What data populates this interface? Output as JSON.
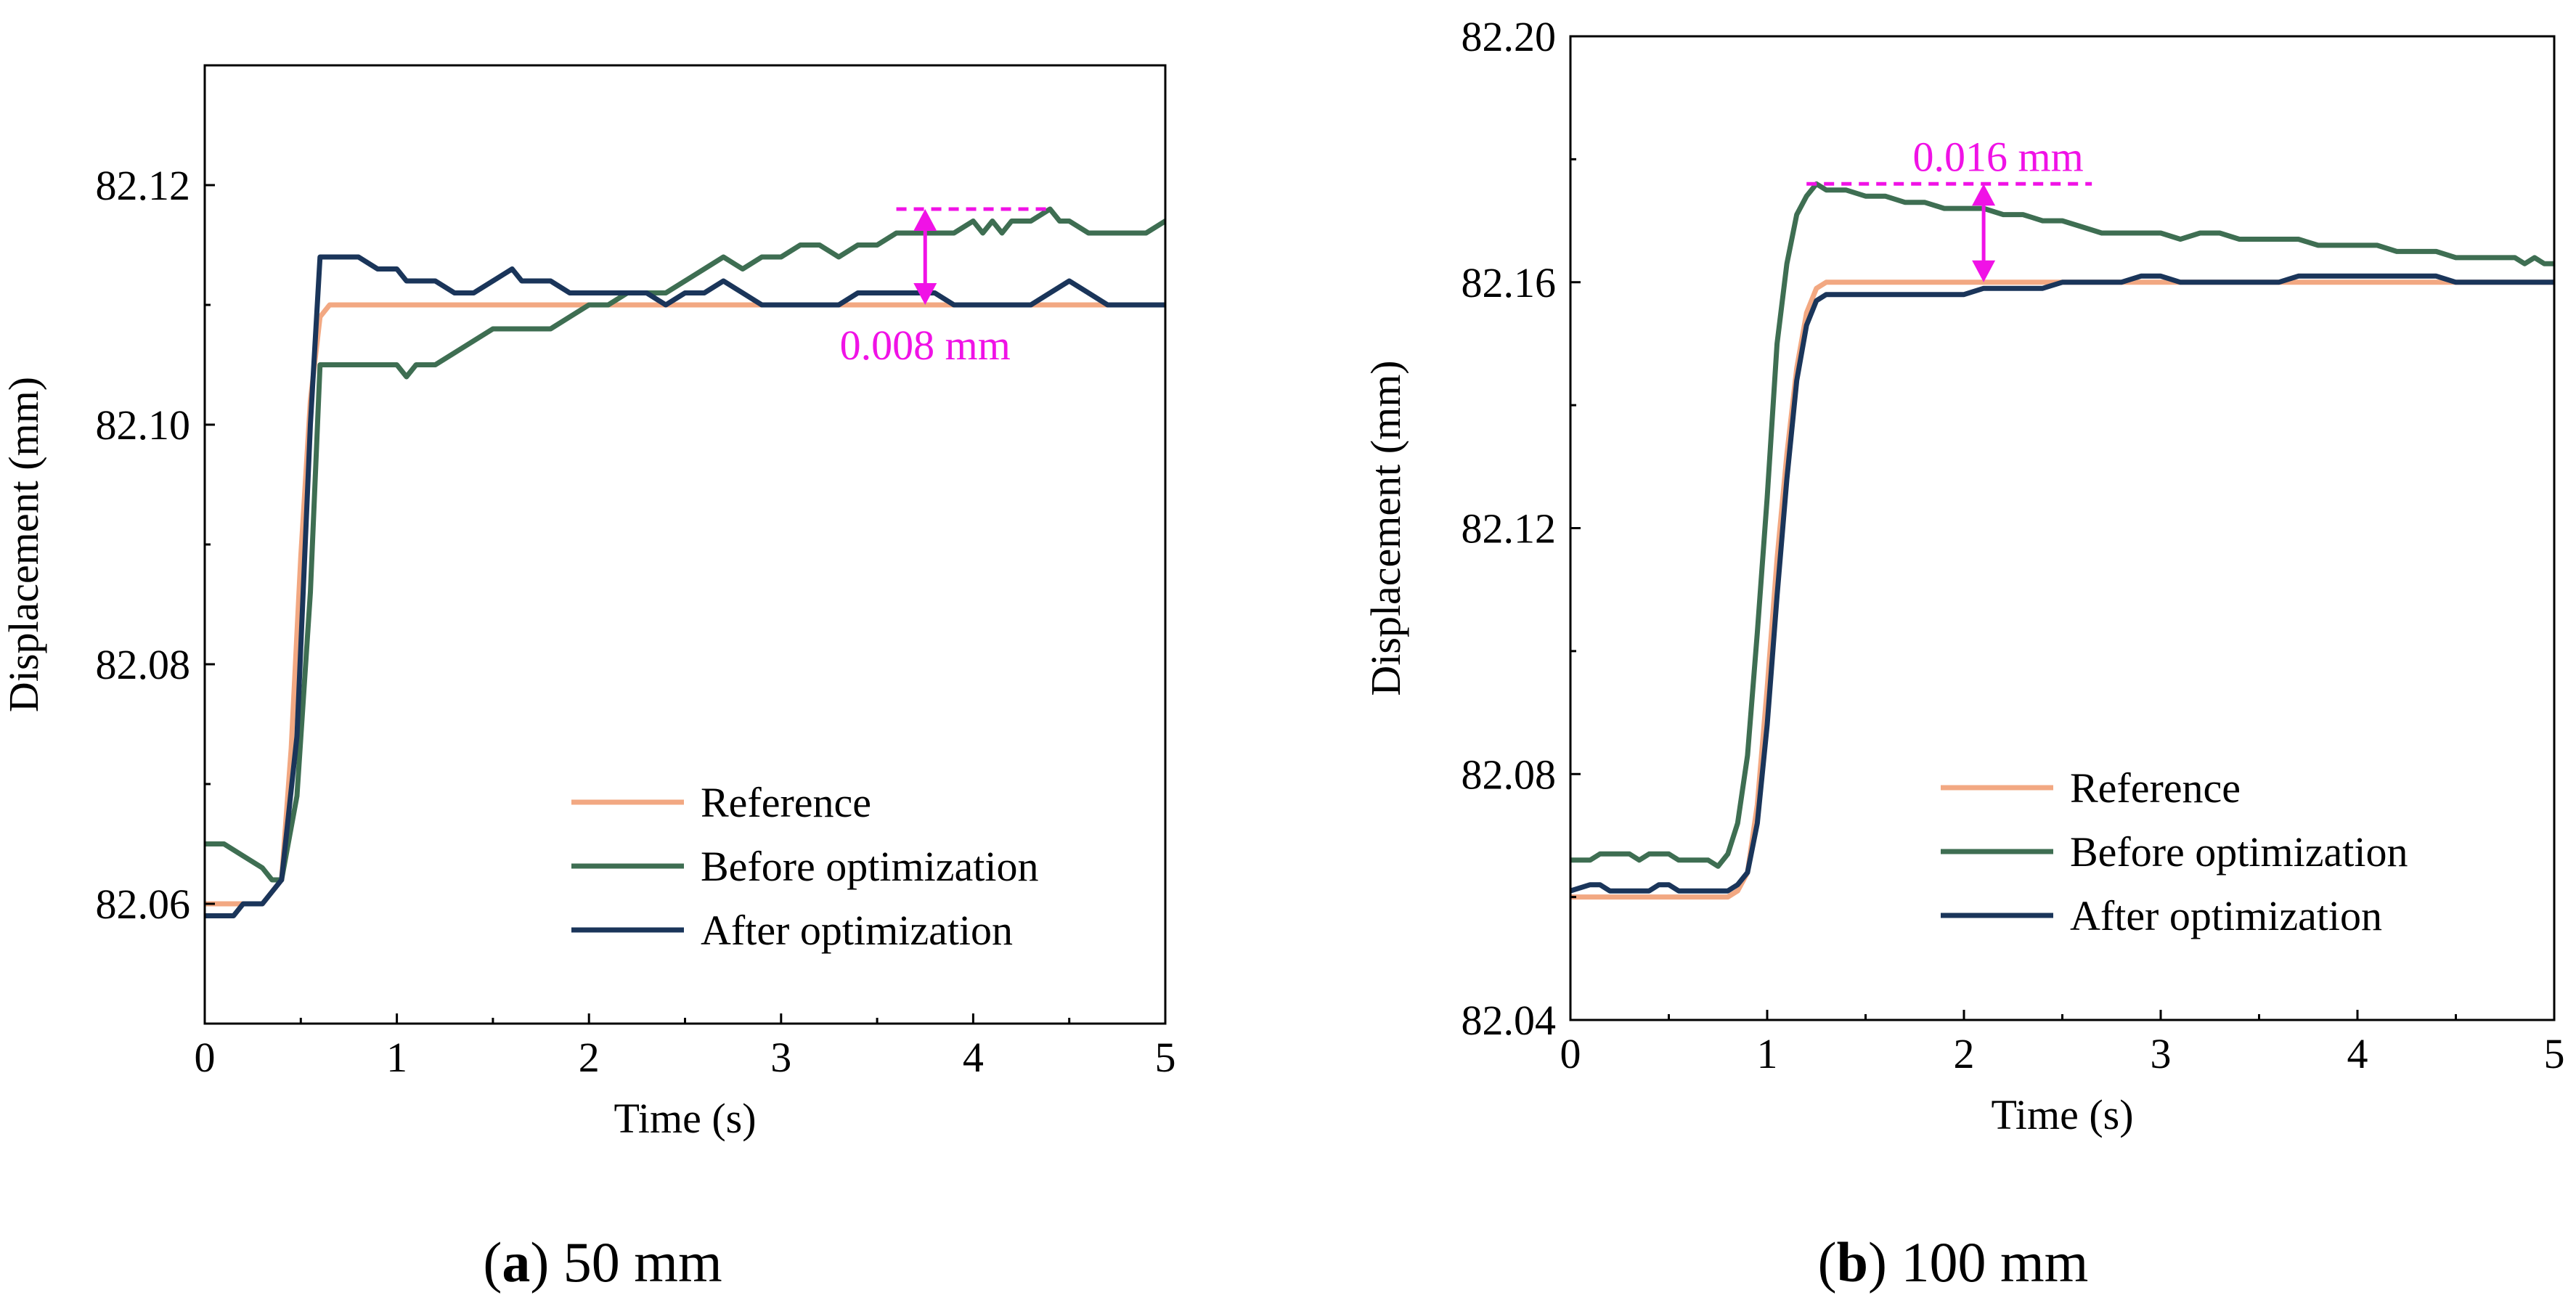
{
  "colors": {
    "reference": "#F2A882",
    "before": "#3E6E52",
    "after": "#1A355A",
    "annotation": "#F012E6",
    "axis": "#000000"
  },
  "chart_data": [
    {
      "type": "line",
      "panel": "a",
      "caption_letter": "a",
      "caption_text": " 50 mm",
      "xlabel": "Time (s)",
      "ylabel": "Displacement (mm)",
      "xlim": [
        0,
        5
      ],
      "ylim": [
        82.05,
        82.13
      ],
      "xticks": [
        0,
        1,
        2,
        3,
        4,
        5
      ],
      "xtick_labels": [
        "0",
        "1",
        "2",
        "3",
        "4",
        "5"
      ],
      "yticks": [
        82.06,
        82.08,
        82.1,
        82.12
      ],
      "ytick_labels": [
        "82.06",
        "82.08",
        "82.10",
        "82.12"
      ],
      "legend_position": "bottom-right",
      "series": [
        {
          "name": "Reference",
          "key": "reference",
          "x": [
            0,
            0.3,
            0.35,
            0.4,
            0.45,
            0.5,
            0.55,
            0.6,
            0.65,
            0.7,
            5
          ],
          "y": [
            82.06,
            82.06,
            82.061,
            82.062,
            82.073,
            82.089,
            82.102,
            82.109,
            82.11,
            82.11,
            82.11
          ]
        },
        {
          "name": "Before optimization",
          "key": "before",
          "x": [
            0,
            0.1,
            0.2,
            0.3,
            0.35,
            0.4,
            0.48,
            0.55,
            0.6,
            0.65,
            0.7,
            0.8,
            0.9,
            1.0,
            1.05,
            1.1,
            1.2,
            1.3,
            1.4,
            1.5,
            1.6,
            1.7,
            1.8,
            1.9,
            2.0,
            2.1,
            2.2,
            2.3,
            2.4,
            2.5,
            2.6,
            2.7,
            2.8,
            2.9,
            3.0,
            3.1,
            3.2,
            3.3,
            3.4,
            3.5,
            3.6,
            3.7,
            3.8,
            3.9,
            4.0,
            4.05,
            4.1,
            4.15,
            4.2,
            4.3,
            4.4,
            4.45,
            4.5,
            4.6,
            4.7,
            4.8,
            4.9,
            5.0
          ],
          "y": [
            82.065,
            82.065,
            82.064,
            82.063,
            82.062,
            82.062,
            82.069,
            82.086,
            82.105,
            82.105,
            82.105,
            82.105,
            82.105,
            82.105,
            82.104,
            82.105,
            82.105,
            82.106,
            82.107,
            82.108,
            82.108,
            82.108,
            82.108,
            82.109,
            82.11,
            82.11,
            82.111,
            82.111,
            82.111,
            82.112,
            82.113,
            82.114,
            82.113,
            82.114,
            82.114,
            82.115,
            82.115,
            82.114,
            82.115,
            82.115,
            82.116,
            82.116,
            82.116,
            82.116,
            82.117,
            82.116,
            82.117,
            82.116,
            82.117,
            82.117,
            82.118,
            82.117,
            82.117,
            82.116,
            82.116,
            82.116,
            82.116,
            82.117
          ]
        },
        {
          "name": "After optimization",
          "key": "after",
          "x": [
            0,
            0.15,
            0.2,
            0.3,
            0.35,
            0.4,
            0.48,
            0.55,
            0.6,
            0.65,
            0.8,
            0.9,
            1.0,
            1.05,
            1.1,
            1.2,
            1.3,
            1.4,
            1.5,
            1.6,
            1.65,
            1.7,
            1.8,
            1.9,
            2.0,
            2.1,
            2.2,
            2.3,
            2.4,
            2.5,
            2.6,
            2.7,
            2.8,
            2.9,
            3.0,
            3.1,
            3.2,
            3.3,
            3.4,
            3.5,
            3.6,
            3.7,
            3.8,
            3.9,
            4.0,
            4.1,
            4.2,
            4.3,
            4.4,
            4.5,
            4.6,
            4.7,
            4.8,
            4.9,
            5.0
          ],
          "y": [
            82.059,
            82.059,
            82.06,
            82.06,
            82.061,
            82.062,
            82.074,
            82.1,
            82.114,
            82.114,
            82.114,
            82.113,
            82.113,
            82.112,
            82.112,
            82.112,
            82.111,
            82.111,
            82.112,
            82.113,
            82.112,
            82.112,
            82.112,
            82.111,
            82.111,
            82.111,
            82.111,
            82.111,
            82.11,
            82.111,
            82.111,
            82.112,
            82.111,
            82.11,
            82.11,
            82.11,
            82.11,
            82.11,
            82.111,
            82.111,
            82.111,
            82.111,
            82.111,
            82.11,
            82.11,
            82.11,
            82.11,
            82.11,
            82.111,
            82.112,
            82.111,
            82.11,
            82.11,
            82.11,
            82.11
          ]
        }
      ],
      "annotation": {
        "label": "0.008 mm",
        "x": 3.75,
        "y_top": 82.118,
        "y_bottom": 82.11,
        "dash_x": [
          3.6,
          4.4
        ]
      }
    },
    {
      "type": "line",
      "panel": "b",
      "caption_letter": "b",
      "caption_text": " 100 mm",
      "xlabel": "Time (s)",
      "ylabel": "Displacement (mm)",
      "xlim": [
        0,
        5
      ],
      "ylim": [
        82.04,
        82.2
      ],
      "xticks": [
        0,
        1,
        2,
        3,
        4,
        5
      ],
      "xtick_labels": [
        "0",
        "1",
        "2",
        "3",
        "4",
        "5"
      ],
      "yticks": [
        82.04,
        82.08,
        82.12,
        82.16,
        82.2
      ],
      "ytick_labels": [
        "82.04",
        "82.08",
        "82.12",
        "82.16",
        "82.20"
      ],
      "legend_position": "bottom-right",
      "series": [
        {
          "name": "Reference",
          "key": "reference",
          "x": [
            0,
            0.8,
            0.85,
            0.9,
            0.95,
            1.0,
            1.05,
            1.1,
            1.15,
            1.2,
            1.25,
            1.3,
            5
          ],
          "y": [
            82.06,
            82.06,
            82.061,
            82.064,
            82.075,
            82.094,
            82.115,
            82.132,
            82.146,
            82.155,
            82.159,
            82.16,
            82.16
          ]
        },
        {
          "name": "Before optimization",
          "key": "before",
          "x": [
            0,
            0.1,
            0.15,
            0.2,
            0.3,
            0.35,
            0.4,
            0.5,
            0.55,
            0.6,
            0.7,
            0.75,
            0.8,
            0.85,
            0.9,
            0.95,
            1.0,
            1.05,
            1.1,
            1.15,
            1.2,
            1.25,
            1.3,
            1.4,
            1.5,
            1.6,
            1.7,
            1.8,
            1.9,
            2.0,
            2.1,
            2.2,
            2.3,
            2.4,
            2.5,
            2.6,
            2.7,
            2.8,
            2.9,
            3.0,
            3.1,
            3.2,
            3.3,
            3.4,
            3.5,
            3.6,
            3.7,
            3.8,
            3.9,
            4.0,
            4.1,
            4.2,
            4.3,
            4.4,
            4.5,
            4.6,
            4.7,
            4.8,
            4.85,
            4.9,
            4.95,
            5.0
          ],
          "y": [
            82.066,
            82.066,
            82.067,
            82.067,
            82.067,
            82.066,
            82.067,
            82.067,
            82.066,
            82.066,
            82.066,
            82.065,
            82.067,
            82.072,
            82.083,
            82.103,
            82.125,
            82.15,
            82.163,
            82.171,
            82.174,
            82.176,
            82.175,
            82.175,
            82.174,
            82.174,
            82.173,
            82.173,
            82.172,
            82.172,
            82.172,
            82.171,
            82.171,
            82.17,
            82.17,
            82.169,
            82.168,
            82.168,
            82.168,
            82.168,
            82.167,
            82.168,
            82.168,
            82.167,
            82.167,
            82.167,
            82.167,
            82.166,
            82.166,
            82.166,
            82.166,
            82.165,
            82.165,
            82.165,
            82.164,
            82.164,
            82.164,
            82.164,
            82.163,
            82.164,
            82.163,
            82.163
          ]
        },
        {
          "name": "After optimization",
          "key": "after",
          "x": [
            0,
            0.1,
            0.15,
            0.2,
            0.3,
            0.4,
            0.45,
            0.5,
            0.55,
            0.6,
            0.7,
            0.8,
            0.85,
            0.9,
            0.95,
            1.0,
            1.05,
            1.1,
            1.15,
            1.2,
            1.25,
            1.3,
            1.4,
            1.5,
            1.6,
            1.7,
            1.8,
            1.9,
            2.0,
            2.1,
            2.2,
            2.3,
            2.4,
            2.5,
            2.6,
            2.7,
            2.8,
            2.9,
            3.0,
            3.1,
            3.2,
            3.3,
            3.4,
            3.5,
            3.6,
            3.7,
            3.8,
            3.9,
            4.0,
            4.1,
            4.2,
            4.3,
            4.4,
            4.5,
            4.6,
            4.7,
            4.8,
            4.9,
            5.0
          ],
          "y": [
            82.061,
            82.062,
            82.062,
            82.061,
            82.061,
            82.061,
            82.062,
            82.062,
            82.061,
            82.061,
            82.061,
            82.061,
            82.062,
            82.064,
            82.072,
            82.088,
            82.109,
            82.128,
            82.144,
            82.153,
            82.157,
            82.158,
            82.158,
            82.158,
            82.158,
            82.158,
            82.158,
            82.158,
            82.158,
            82.159,
            82.159,
            82.159,
            82.159,
            82.16,
            82.16,
            82.16,
            82.16,
            82.161,
            82.161,
            82.16,
            82.16,
            82.16,
            82.16,
            82.16,
            82.16,
            82.161,
            82.161,
            82.161,
            82.161,
            82.161,
            82.161,
            82.161,
            82.161,
            82.16,
            82.16,
            82.16,
            82.16,
            82.16,
            82.16
          ]
        }
      ],
      "annotation": {
        "label": "0.016 mm",
        "x": 2.1,
        "y_top": 82.176,
        "y_bottom": 82.16,
        "dash_x": [
          1.2,
          2.65
        ]
      }
    }
  ]
}
